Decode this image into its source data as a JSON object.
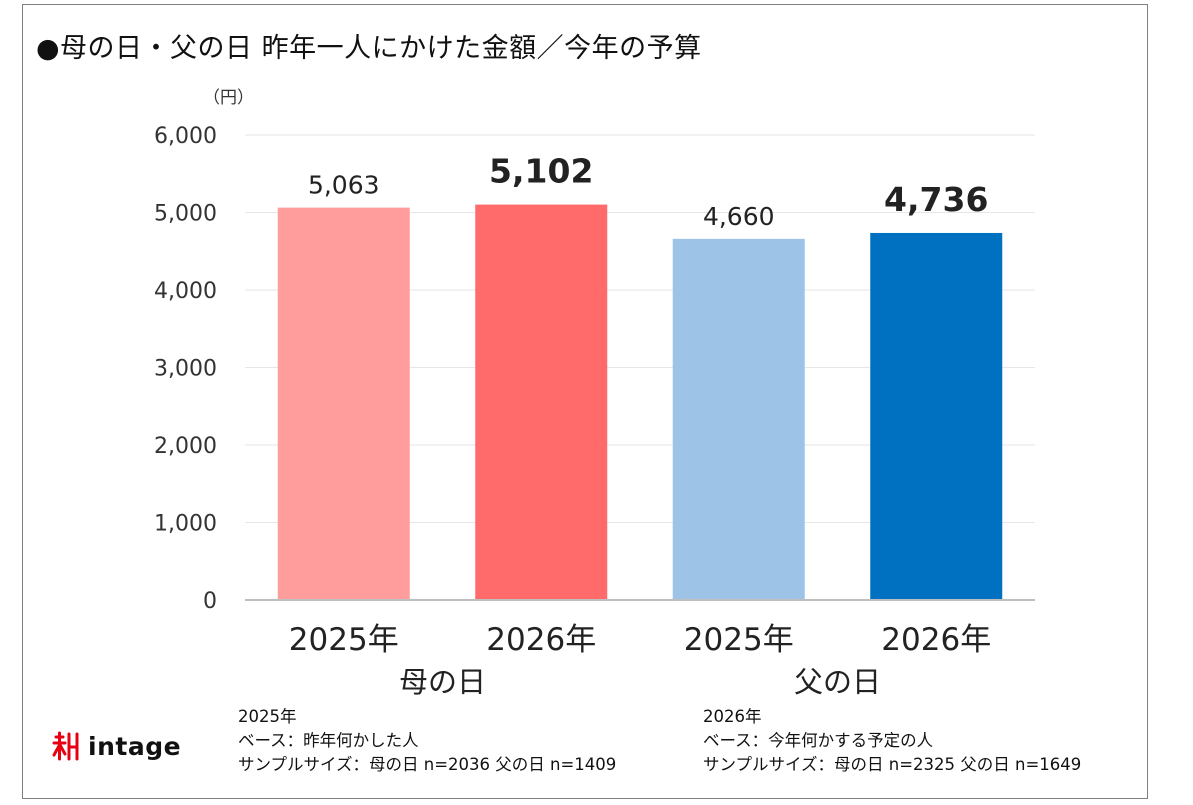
{
  "title": "●母の日・父の日 昨年一人にかけた金額／今年の予算",
  "chart_data": {
    "type": "bar",
    "unit_label": "（円）",
    "ylim": [
      0,
      6000
    ],
    "yticks": [
      0,
      1000,
      2000,
      3000,
      4000,
      5000,
      6000
    ],
    "ytick_labels": [
      "0",
      "1,000",
      "2,000",
      "3,000",
      "4,000",
      "5,000",
      "6,000"
    ],
    "grid": true,
    "categories": [
      "2025年",
      "2026年",
      "2025年",
      "2026年"
    ],
    "groups": [
      "母の日",
      "父の日"
    ],
    "values": [
      5063,
      5102,
      4660,
      4736
    ],
    "value_labels": [
      "5,063",
      "5,102",
      "4,660",
      "4,736"
    ],
    "bold_labels": [
      false,
      true,
      false,
      true
    ],
    "colors": [
      "#FF9C9C",
      "#FF6B6B",
      "#9DC3E6",
      "#0070C0"
    ]
  },
  "notes": {
    "left": [
      "2025年",
      "ベース：昨年何かした人",
      "サンプルサイズ：母の日 n=2036 父の日 n=1409"
    ],
    "right": [
      "2026年",
      "ベース：今年何かする予定の人",
      "サンプルサイズ：母の日 n=2325 父の日 n=1649"
    ]
  },
  "logo": {
    "text": "intage",
    "icon": "intage-logo-icon",
    "color": "#E60012"
  }
}
